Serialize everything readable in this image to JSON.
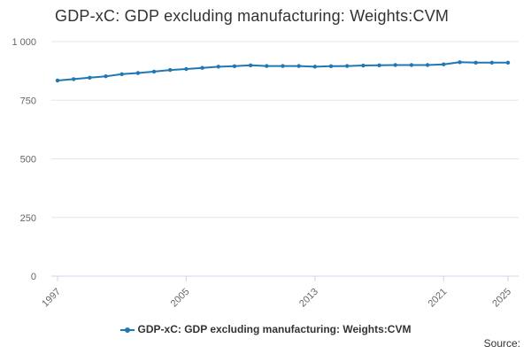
{
  "title": "GDP-xC: GDP excluding manufacturing: Weights:CVM",
  "legend_label": "GDP-xC: GDP excluding manufacturing: Weights:CVM",
  "source_label": "Source:",
  "colors": {
    "series": "#1f78b4",
    "grid": "#e6e6e6",
    "axis": "#ccd6eb",
    "label": "#666666",
    "text": "#333333"
  },
  "chart_data": {
    "type": "line",
    "title": "GDP-xC: GDP excluding manufacturing: Weights:CVM",
    "xlabel": "",
    "ylabel": "",
    "ylim": [
      0,
      1000
    ],
    "yticks": [
      0,
      250,
      500,
      750,
      1000
    ],
    "ytick_labels": [
      "0",
      "250",
      "500",
      "750",
      "1 000"
    ],
    "xlim": [
      1997,
      2025
    ],
    "xticks": [
      1997,
      2005,
      2013,
      2021,
      2025
    ],
    "xtick_labels": [
      "1997",
      "2005",
      "2013",
      "2021",
      "2025"
    ],
    "grid": true,
    "legend_position": "bottom",
    "series": [
      {
        "name": "GDP-xC: GDP excluding manufacturing: Weights:CVM",
        "x": [
          1997,
          1998,
          1999,
          2000,
          2001,
          2002,
          2003,
          2004,
          2005,
          2006,
          2007,
          2008,
          2009,
          2010,
          2011,
          2012,
          2013,
          2014,
          2015,
          2016,
          2017,
          2018,
          2019,
          2020,
          2021,
          2022,
          2023,
          2024,
          2025
        ],
        "values": [
          834,
          840,
          846,
          852,
          861,
          866,
          872,
          879,
          883,
          888,
          893,
          895,
          899,
          896,
          896,
          896,
          893,
          895,
          896,
          898,
          899,
          900,
          900,
          900,
          903,
          912,
          910,
          910,
          910
        ]
      }
    ]
  }
}
